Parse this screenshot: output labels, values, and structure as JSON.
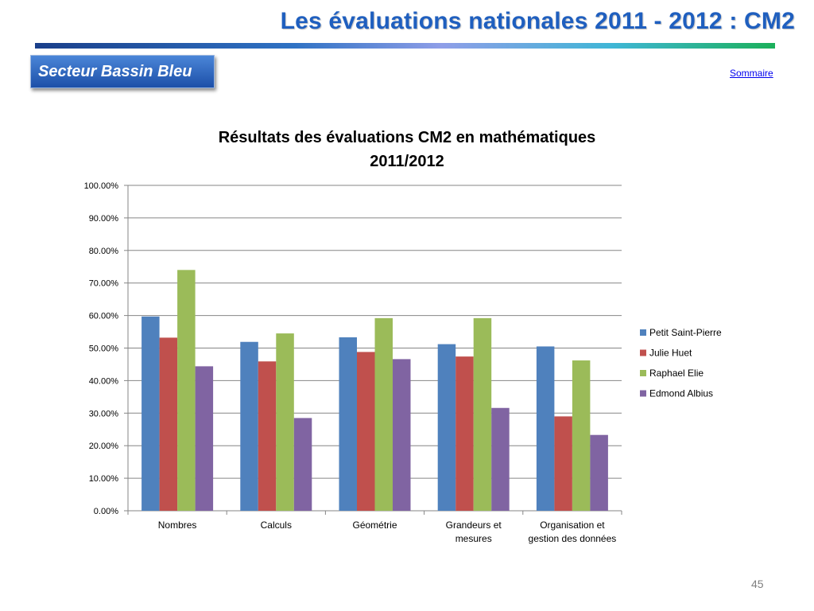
{
  "slide": {
    "title": "Les évaluations nationales 2011 - 2012  : CM2",
    "sector_label": "Secteur  Bassin Bleu",
    "summary_link": "Sommaire",
    "page_number": "45"
  },
  "chart_data": {
    "type": "bar",
    "title_lines": [
      "Résultats des évaluations CM2 en mathématiques",
      "2011/2012"
    ],
    "categories": [
      [
        "Nombres"
      ],
      [
        "Calculs"
      ],
      [
        "Géométrie"
      ],
      [
        "Grandeurs et",
        "mesures"
      ],
      [
        "Organisation et",
        "gestion des données"
      ]
    ],
    "series": [
      {
        "name": "Petit Saint-Pierre",
        "color": "#4f81bd",
        "values": [
          59.7,
          51.9,
          53.3,
          51.2,
          50.5
        ]
      },
      {
        "name": "Julie Huet",
        "color": "#c0504d",
        "values": [
          53.2,
          45.9,
          48.8,
          47.4,
          29.0
        ]
      },
      {
        "name": "Raphael Elie",
        "color": "#9bbb59",
        "values": [
          74.0,
          54.5,
          59.2,
          59.2,
          46.2
        ]
      },
      {
        "name": "Edmond Albius",
        "color": "#8064a2",
        "values": [
          44.4,
          28.5,
          46.6,
          31.6,
          23.3
        ]
      }
    ],
    "ylim": [
      0,
      100
    ],
    "ytick_step": 10,
    "ytick_format": "0.00%",
    "xlabel": "",
    "ylabel": "",
    "grid": true,
    "legend": "right"
  }
}
